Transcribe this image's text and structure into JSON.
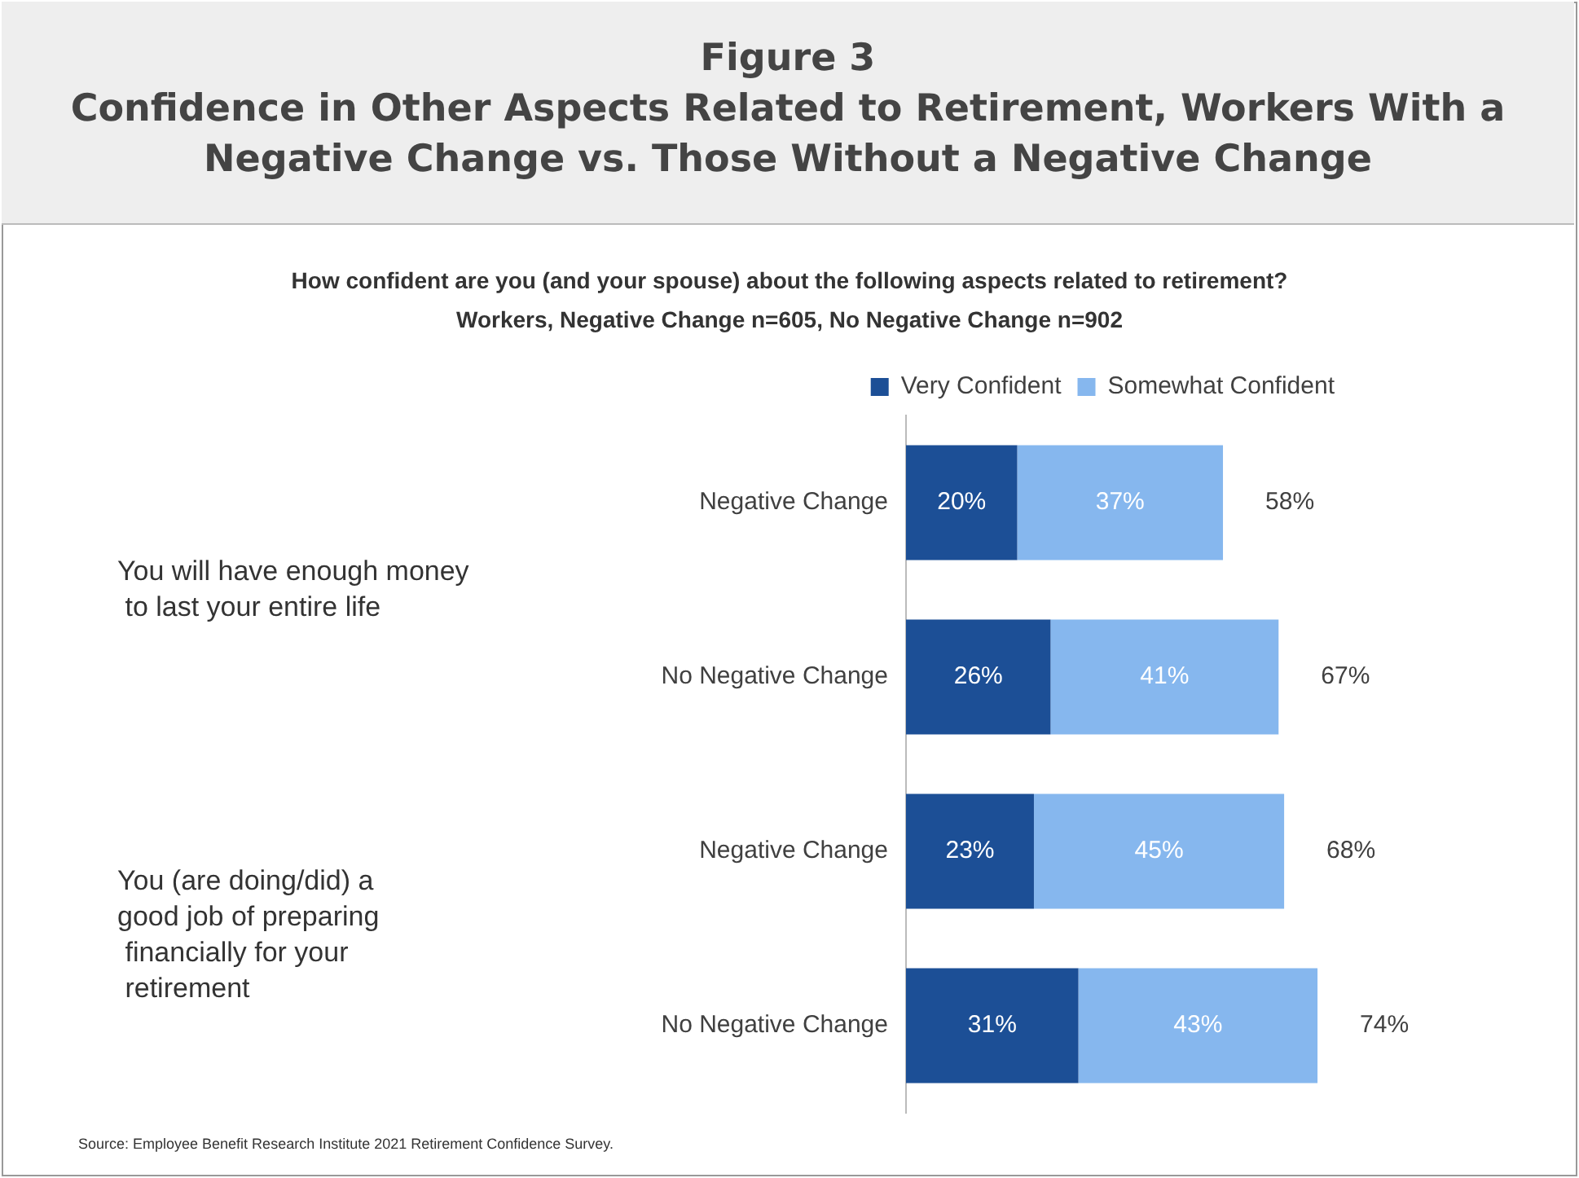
{
  "chart_data": {
    "type": "bar",
    "orientation": "horizontal",
    "stacked": true,
    "title": "Figure 3\nConfidence in Other Aspects Related to Retirement, Workers With a\nNegative Change vs. Those Without a Negative Change",
    "subtitle": "How confident are you (and your spouse) about the following aspects related to retirement?\nWorkers, Negative Change n=605, No Negative Change n=902",
    "categories": [
      "Negative Change",
      "No Negative Change",
      "Negative Change",
      "No Negative Change"
    ],
    "series": [
      {
        "name": "Very Confident",
        "color": "#1c4f96",
        "values": [
          20,
          26,
          23,
          31
        ],
        "value_labels": [
          "20%",
          "26%",
          "23%",
          "31%"
        ]
      },
      {
        "name": "Somewhat Confident",
        "color": "#86b7ee",
        "values": [
          37,
          41,
          45,
          43
        ],
        "value_labels": [
          "37%",
          "41%",
          "45%",
          "43%"
        ]
      }
    ],
    "totals": [
      "58%",
      "67%",
      "68%",
      "74%"
    ],
    "legend": "top right",
    "annotations": [
      "You will have enough money\n to last your entire life",
      "You (are doing/did) a\ngood job of preparing\n financially for your\n retirement",
      "Source: Employee Benefit Research Institute 2021 Retirement Confidence Survey."
    ]
  }
}
